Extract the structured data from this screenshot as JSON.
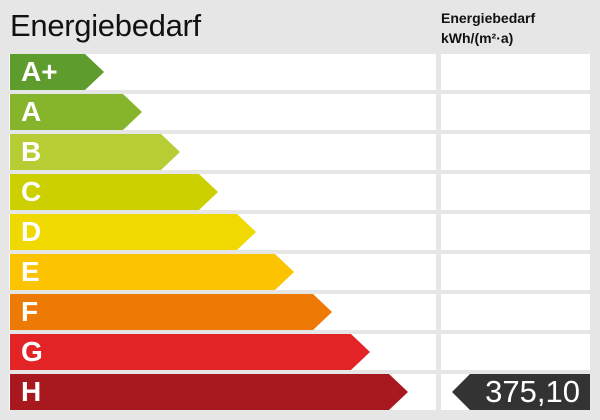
{
  "title": "Energiebedarf",
  "column_header": {
    "line1": "Energiebedarf",
    "line2": "kWh/(m²·a)"
  },
  "classes": [
    {
      "label": "A+",
      "color": "#5e9c2e"
    },
    {
      "label": "A",
      "color": "#86b42a"
    },
    {
      "label": "B",
      "color": "#b7cd34"
    },
    {
      "label": "C",
      "color": "#ccd000"
    },
    {
      "label": "D",
      "color": "#efd900"
    },
    {
      "label": "E",
      "color": "#fbc300"
    },
    {
      "label": "F",
      "color": "#ec7a05"
    },
    {
      "label": "G",
      "color": "#e22426"
    },
    {
      "label": "H",
      "color": "#a8191f"
    }
  ],
  "current": {
    "class": "H",
    "value": "375,10"
  }
}
